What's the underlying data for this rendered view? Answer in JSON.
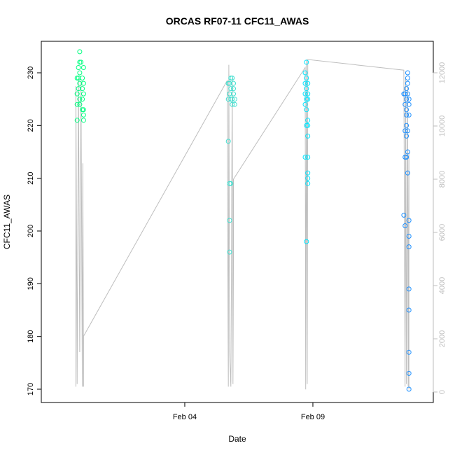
{
  "chart_data": {
    "type": "scatter",
    "title": "ORCAS RF07-11 CFC11_AWAS",
    "xlabel": "Date",
    "ylabel": "CFC11_AWAS",
    "x_ticks": [
      {
        "value": 4,
        "label": "Feb 04"
      },
      {
        "value": 9,
        "label": "Feb 09"
      }
    ],
    "ylim": [
      170,
      235
    ],
    "y_ticks": [
      170,
      180,
      190,
      200,
      210,
      220,
      230
    ],
    "y2_ticks": [
      0,
      2000,
      4000,
      6000,
      8000,
      10000,
      12000
    ],
    "y2lim": [
      0,
      12000
    ],
    "colors": {
      "axis": "#000000",
      "secondary_axis": "#bebebe",
      "altitude_trace": "#bebebe",
      "point_ramp": [
        "#00ff80",
        "#40e0d0",
        "#00e5ff",
        "#1e90ff"
      ]
    },
    "series": [
      {
        "x_center": -0.1,
        "color": "#00ff80",
        "points": [
          {
            "x": -0.2,
            "y": 221
          },
          {
            "x": -0.1,
            "y": 224
          },
          {
            "x": -0.1,
            "y": 225
          },
          {
            "x": -0.2,
            "y": 226
          },
          {
            "x": -0.15,
            "y": 227
          },
          {
            "x": -0.1,
            "y": 228
          },
          {
            "x": -0.2,
            "y": 229
          },
          {
            "x": -0.1,
            "y": 230
          },
          {
            "x": -0.15,
            "y": 231
          },
          {
            "x": -0.05,
            "y": 232
          },
          {
            "x": -0.1,
            "y": 234
          },
          {
            "x": 0.0,
            "y": 223
          },
          {
            "x": 0.05,
            "y": 221
          },
          {
            "x": 0.05,
            "y": 222
          },
          {
            "x": 0.05,
            "y": 223
          },
          {
            "x": 0.0,
            "y": 225
          },
          {
            "x": 0.05,
            "y": 226
          },
          {
            "x": 0.0,
            "y": 227
          },
          {
            "x": 0.05,
            "y": 228
          },
          {
            "x": 0.0,
            "y": 229
          },
          {
            "x": 0.05,
            "y": 231
          },
          {
            "x": -0.1,
            "y": 232
          },
          {
            "x": -0.2,
            "y": 224
          },
          {
            "x": -0.15,
            "y": 229
          }
        ]
      },
      {
        "x_center": 6.7,
        "color": "#40e0d0",
        "points": [
          {
            "x": 5.7,
            "y": 217
          },
          {
            "x": 5.75,
            "y": 209
          },
          {
            "x": 5.8,
            "y": 209
          },
          {
            "x": 5.75,
            "y": 202
          },
          {
            "x": 5.75,
            "y": 196
          },
          {
            "x": 5.7,
            "y": 225
          },
          {
            "x": 5.75,
            "y": 226
          },
          {
            "x": 5.8,
            "y": 227
          },
          {
            "x": 5.75,
            "y": 228
          },
          {
            "x": 5.8,
            "y": 229
          },
          {
            "x": 5.85,
            "y": 224
          },
          {
            "x": 5.85,
            "y": 225
          },
          {
            "x": 5.9,
            "y": 226
          },
          {
            "x": 5.9,
            "y": 227
          },
          {
            "x": 5.9,
            "y": 228
          },
          {
            "x": 5.85,
            "y": 229
          },
          {
            "x": 5.95,
            "y": 224
          },
          {
            "x": 5.95,
            "y": 225
          },
          {
            "x": 5.7,
            "y": 228
          },
          {
            "x": 5.8,
            "y": 225
          }
        ]
      },
      {
        "x_center": 9.0,
        "color": "#00e5ff",
        "points": [
          {
            "x": 8.7,
            "y": 214
          },
          {
            "x": 8.75,
            "y": 220
          },
          {
            "x": 8.8,
            "y": 214
          },
          {
            "x": 8.8,
            "y": 220
          },
          {
            "x": 8.8,
            "y": 218
          },
          {
            "x": 8.8,
            "y": 211
          },
          {
            "x": 8.8,
            "y": 210
          },
          {
            "x": 8.8,
            "y": 209
          },
          {
            "x": 8.75,
            "y": 198
          },
          {
            "x": 8.75,
            "y": 223
          },
          {
            "x": 8.7,
            "y": 224
          },
          {
            "x": 8.75,
            "y": 225
          },
          {
            "x": 8.7,
            "y": 226
          },
          {
            "x": 8.75,
            "y": 227
          },
          {
            "x": 8.7,
            "y": 228
          },
          {
            "x": 8.75,
            "y": 229
          },
          {
            "x": 8.7,
            "y": 230
          },
          {
            "x": 8.75,
            "y": 232
          },
          {
            "x": 8.8,
            "y": 225
          },
          {
            "x": 8.8,
            "y": 226
          },
          {
            "x": 8.8,
            "y": 228
          },
          {
            "x": 8.8,
            "y": 221
          }
        ]
      },
      {
        "x_center": 12.6,
        "color": "#1e90ff",
        "points": [
          {
            "x": 12.55,
            "y": 203
          },
          {
            "x": 12.6,
            "y": 201
          },
          {
            "x": 12.65,
            "y": 214
          },
          {
            "x": 12.7,
            "y": 211
          },
          {
            "x": 12.7,
            "y": 215
          },
          {
            "x": 12.75,
            "y": 202
          },
          {
            "x": 12.75,
            "y": 199
          },
          {
            "x": 12.75,
            "y": 197
          },
          {
            "x": 12.75,
            "y": 189
          },
          {
            "x": 12.75,
            "y": 185
          },
          {
            "x": 12.75,
            "y": 177
          },
          {
            "x": 12.75,
            "y": 173
          },
          {
            "x": 12.75,
            "y": 170
          },
          {
            "x": 12.6,
            "y": 214
          },
          {
            "x": 12.65,
            "y": 218
          },
          {
            "x": 12.65,
            "y": 220
          },
          {
            "x": 12.65,
            "y": 222
          },
          {
            "x": 12.6,
            "y": 224
          },
          {
            "x": 12.65,
            "y": 225
          },
          {
            "x": 12.6,
            "y": 226
          },
          {
            "x": 12.65,
            "y": 227
          },
          {
            "x": 12.7,
            "y": 228
          },
          {
            "x": 12.7,
            "y": 229
          },
          {
            "x": 12.7,
            "y": 230
          },
          {
            "x": 12.75,
            "y": 225
          },
          {
            "x": 12.75,
            "y": 224
          },
          {
            "x": 12.7,
            "y": 226
          },
          {
            "x": 12.7,
            "y": 219
          },
          {
            "x": 12.75,
            "y": 222
          },
          {
            "x": 12.6,
            "y": 219
          },
          {
            "x": 12.55,
            "y": 226
          },
          {
            "x": 12.65,
            "y": 223
          }
        ]
      }
    ],
    "altitude_trace": [
      {
        "x": -0.25,
        "y2": 200
      },
      {
        "x": -0.25,
        "y2": 11500
      },
      {
        "x": -0.2,
        "y2": 300
      },
      {
        "x": -0.15,
        "y2": 11800
      },
      {
        "x": -0.1,
        "y2": 1500
      },
      {
        "x": -0.05,
        "y2": 11700
      },
      {
        "x": 0.0,
        "y2": 200
      },
      {
        "x": 0.02,
        "y2": 8600
      },
      {
        "x": 0.05,
        "y2": 200
      },
      {
        "x": 0.05,
        "y2": 2100
      },
      {
        "x": 5.65,
        "y2": 11700
      },
      {
        "x": 5.7,
        "y2": 200
      },
      {
        "x": 5.72,
        "y2": 12300
      },
      {
        "x": 5.75,
        "y2": 1500
      },
      {
        "x": 5.8,
        "y2": 200
      },
      {
        "x": 5.82,
        "y2": 4200
      },
      {
        "x": 5.85,
        "y2": 11800
      },
      {
        "x": 5.88,
        "y2": 300
      },
      {
        "x": 5.9,
        "y2": 4700
      },
      {
        "x": 5.9,
        "y2": 8000
      },
      {
        "x": 8.7,
        "y2": 12200
      },
      {
        "x": 8.72,
        "y2": 100
      },
      {
        "x": 8.75,
        "y2": 12500
      },
      {
        "x": 8.78,
        "y2": 300
      },
      {
        "x": 8.8,
        "y2": 12100
      },
      {
        "x": 8.8,
        "y2": 12500
      },
      {
        "x": 12.55,
        "y2": 12100
      },
      {
        "x": 12.6,
        "y2": 200
      },
      {
        "x": 12.62,
        "y2": 11800
      },
      {
        "x": 12.65,
        "y2": 300
      },
      {
        "x": 12.7,
        "y2": 11500
      },
      {
        "x": 12.72,
        "y2": 200
      },
      {
        "x": 12.75,
        "y2": 9000
      },
      {
        "x": 12.75,
        "y2": 100
      }
    ]
  }
}
